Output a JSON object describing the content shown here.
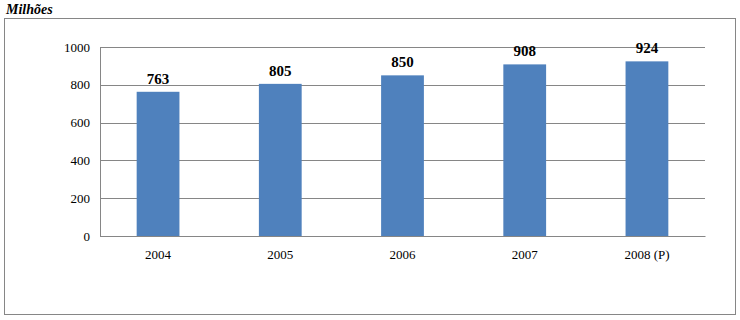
{
  "chart_data": {
    "type": "bar",
    "y_label": "Milhões",
    "categories": [
      "2004",
      "2005",
      "2006",
      "2007",
      "2008 (P)"
    ],
    "values": [
      763,
      805,
      850,
      908,
      924
    ],
    "color": "#4f81bd",
    "ylim": [
      0,
      1000
    ],
    "yticks": [
      0,
      200,
      400,
      600,
      800,
      1000
    ],
    "grid": true,
    "data_labels": true
  }
}
